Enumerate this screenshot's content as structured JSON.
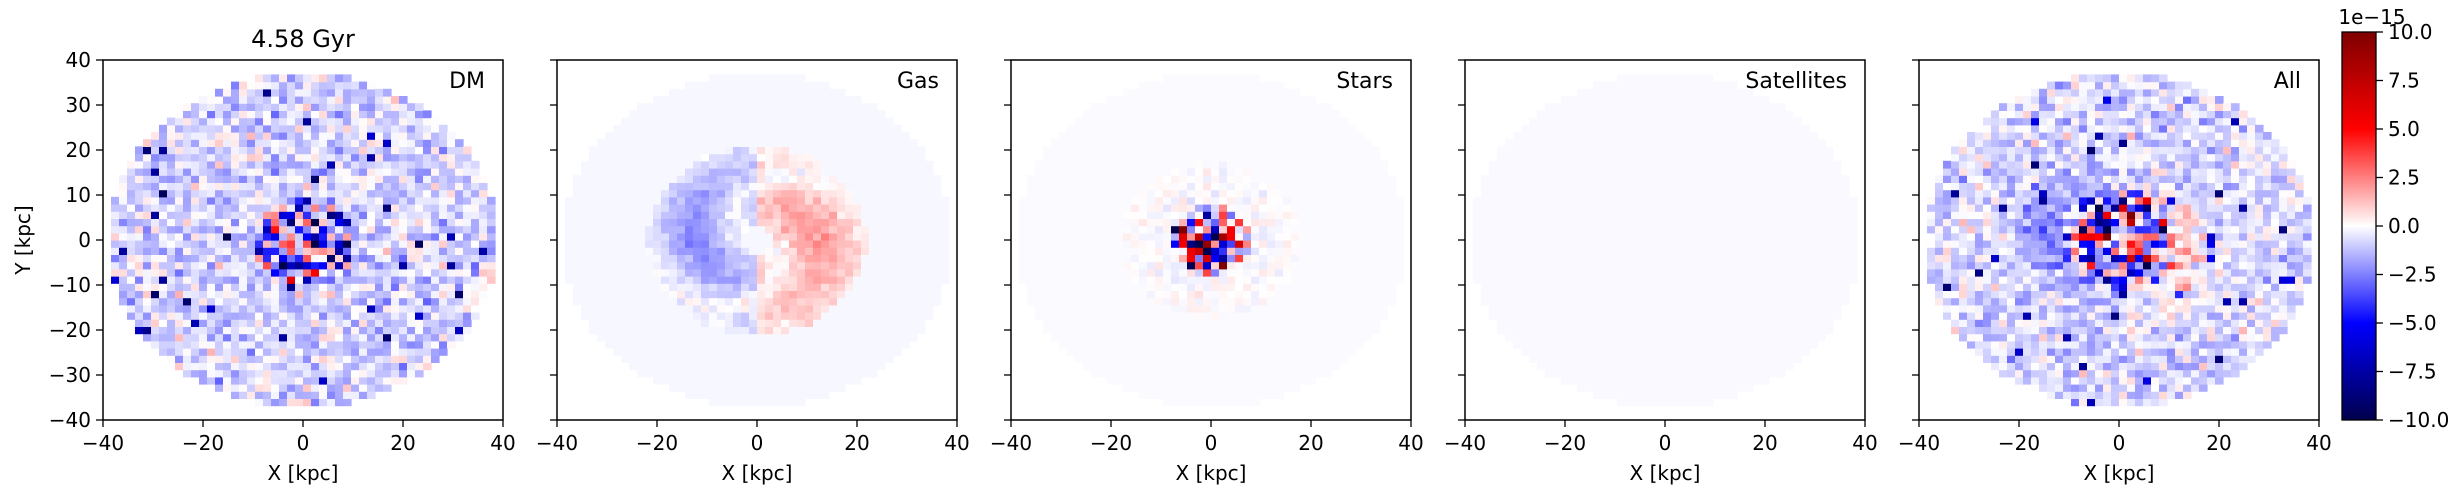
{
  "chart_data": {
    "type": "heatmap",
    "title": "4.58 Gyr",
    "xlabel": "X [kpc]",
    "ylabel": "Y [kpc]",
    "xlim": [
      -40,
      40
    ],
    "ylim": [
      -40,
      40
    ],
    "ticks": [
      -40,
      -20,
      0,
      20,
      40
    ],
    "yticks": [
      -40,
      -30,
      -20,
      -10,
      0,
      10,
      20,
      30,
      40
    ],
    "colormap": "seismic",
    "colorbar": {
      "min": -10.0,
      "max": 10.0,
      "ticks": [
        10.0,
        7.5,
        5.0,
        2.5,
        0.0,
        -2.5,
        -5.0,
        -7.5,
        -10.0
      ],
      "ticklabels": [
        "10.0",
        "7.5",
        "5.0",
        "2.5",
        "0.0",
        "−2.5",
        "−5.0",
        "−7.5",
        "−10.0"
      ],
      "offset_label": "1e−15"
    },
    "panels": [
      {
        "name": "DM"
      },
      {
        "name": "Gas"
      },
      {
        "name": "Stars"
      },
      {
        "name": "Satellites"
      },
      {
        "name": "All"
      }
    ]
  }
}
